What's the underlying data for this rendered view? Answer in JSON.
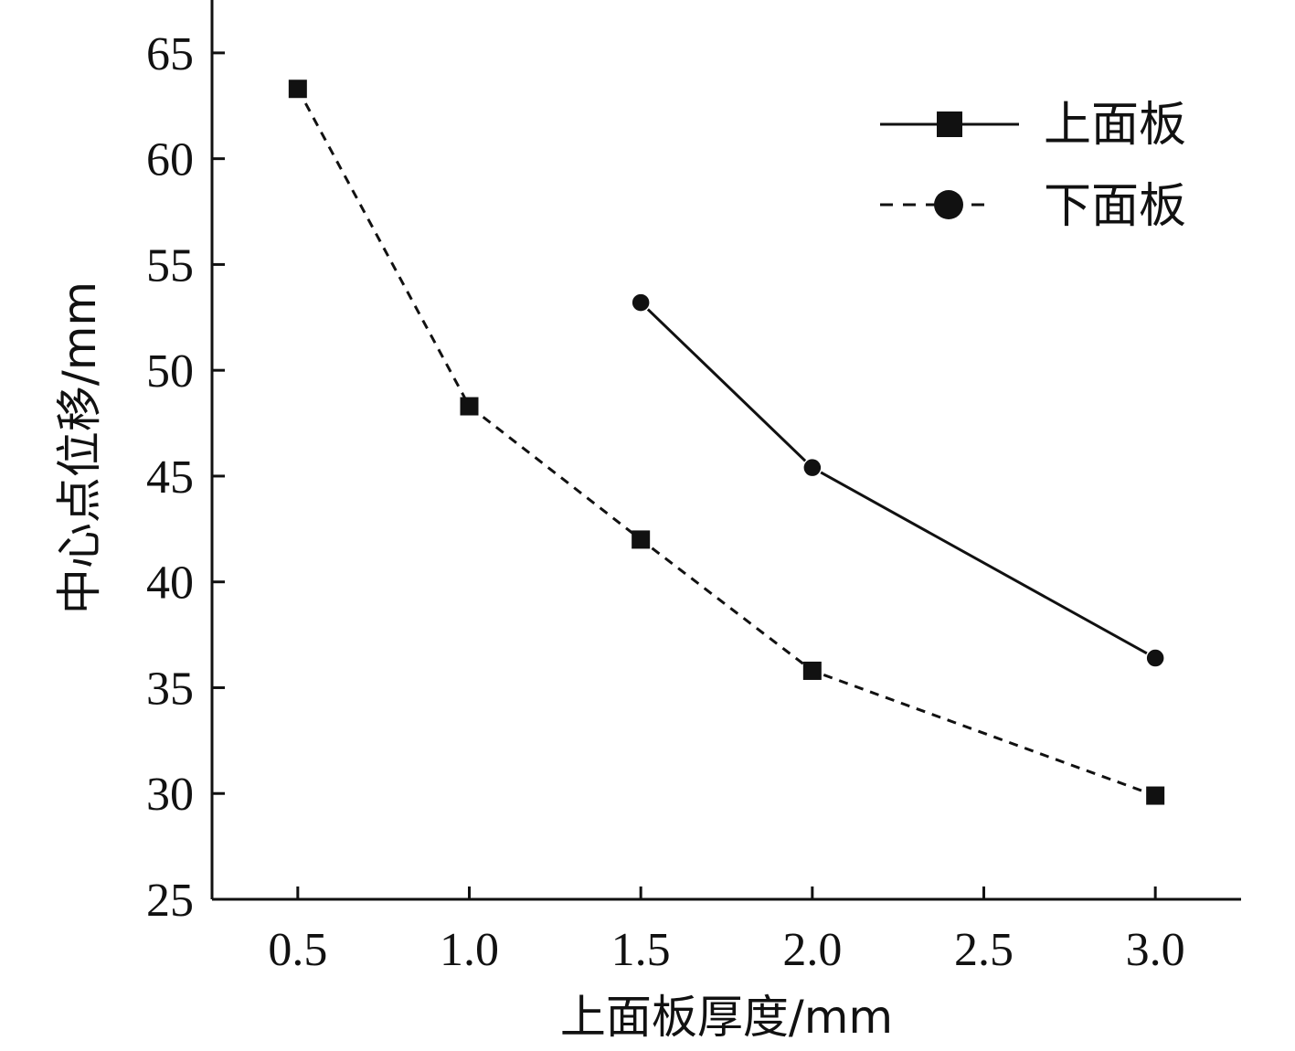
{
  "chart_data": {
    "type": "line",
    "title": "",
    "xlabel": "上面板厚度/mm",
    "ylabel": "中心点位移/mm",
    "xlim": [
      0.25,
      3.25
    ],
    "ylim": [
      25,
      67.5
    ],
    "xticks": [
      0.5,
      1.0,
      1.5,
      2.0,
      2.5,
      3.0
    ],
    "xtick_labels": [
      "0.5",
      "1.0",
      "1.5",
      "2.0",
      "2.5",
      "3.0"
    ],
    "yticks": [
      25,
      30,
      35,
      40,
      45,
      50,
      55,
      60,
      65
    ],
    "ytick_labels": [
      "25",
      "30",
      "35",
      "40",
      "45",
      "50",
      "55",
      "60",
      "65"
    ],
    "grid": false,
    "legend_position": "top-right",
    "legend": [
      {
        "label": "上面板",
        "line_style": "solid",
        "marker": "square"
      },
      {
        "label": "下面板",
        "line_style": "dashed",
        "marker": "circle"
      }
    ],
    "series": [
      {
        "name": "upper-curve",
        "line_style": "solid",
        "marker": "circle",
        "color": "#111111",
        "x": [
          1.5,
          2.0,
          3.0
        ],
        "y": [
          53.2,
          45.4,
          36.4
        ]
      },
      {
        "name": "lower-curve",
        "line_style": "dashed",
        "marker": "square",
        "color": "#111111",
        "x": [
          0.5,
          1.0,
          1.5,
          2.0,
          3.0
        ],
        "y": [
          63.3,
          48.3,
          42.0,
          35.8,
          29.9
        ]
      }
    ]
  }
}
